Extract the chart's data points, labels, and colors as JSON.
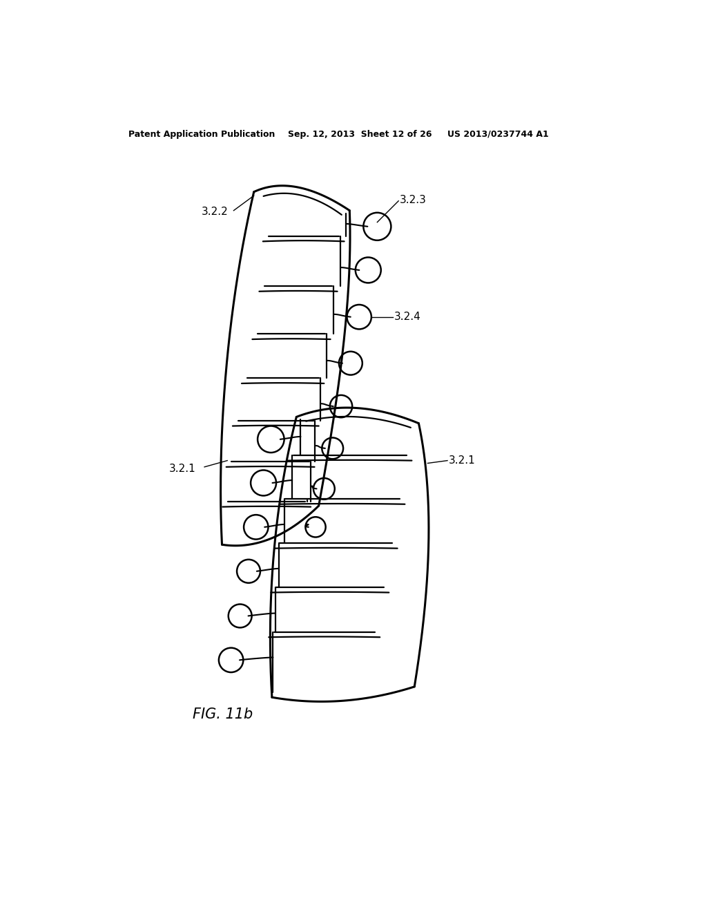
{
  "background_color": "#ffffff",
  "line_color": "#000000",
  "lw_outer": 2.2,
  "lw_inner": 1.6,
  "lw_loop": 1.5,
  "header_left": "Patent Application Publication",
  "header_mid": "Sep. 12, 2013  Sheet 12 of 26",
  "header_right": "US 2013/0237744 A1",
  "fig_label": "FIG. 11b",
  "label_322": "3.2.2",
  "label_323": "3.2.3",
  "label_324": "3.2.4",
  "label_321a": "3.2.1",
  "label_321b": "3.2.1"
}
